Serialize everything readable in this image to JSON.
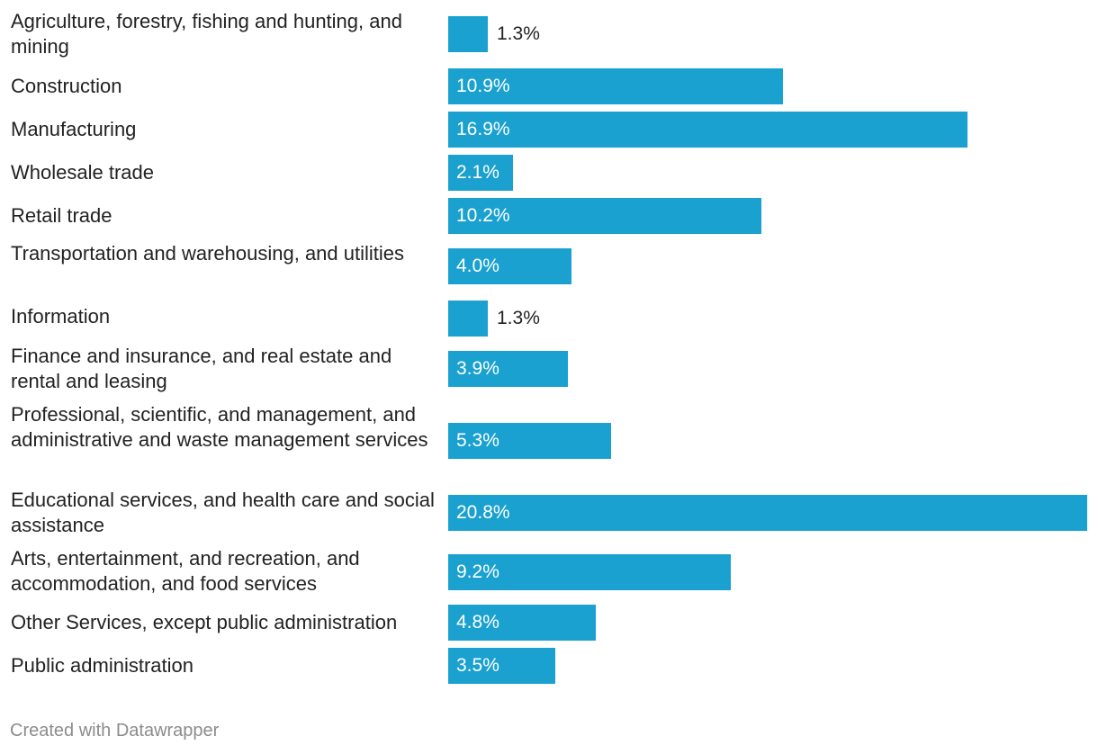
{
  "chart_data": {
    "type": "bar",
    "orientation": "horizontal",
    "categories": [
      "Agriculture, forestry, fishing and hunting, and mining",
      "Construction",
      "Manufacturing",
      "Wholesale trade",
      "Retail trade",
      "Transportation and warehousing, and utilities",
      "Information",
      "Finance and insurance, and real estate and rental and leasing",
      "Professional, scientific, and management, and administrative and waste management services",
      "Educational services, and health care and social assistance",
      "Arts, entertainment, and recreation, and accommodation, and food services",
      "Other Services, except public administration",
      "Public administration"
    ],
    "values": [
      1.3,
      10.9,
      16.9,
      2.1,
      10.2,
      4.0,
      1.3,
      3.9,
      5.3,
      20.8,
      9.2,
      4.8,
      3.5
    ],
    "value_labels": [
      "1.3%",
      "10.9%",
      "16.9%",
      "2.1%",
      "10.2%",
      "4.0%",
      "1.3%",
      "3.9%",
      "5.3%",
      "20.8%",
      "9.2%",
      "4.8%",
      "3.5%"
    ],
    "xlim": [
      0,
      20.8
    ],
    "unit": "%",
    "bar_color": "#1aa1cf",
    "grid": false,
    "legend": "none"
  },
  "credit": "Created with Datawrapper"
}
